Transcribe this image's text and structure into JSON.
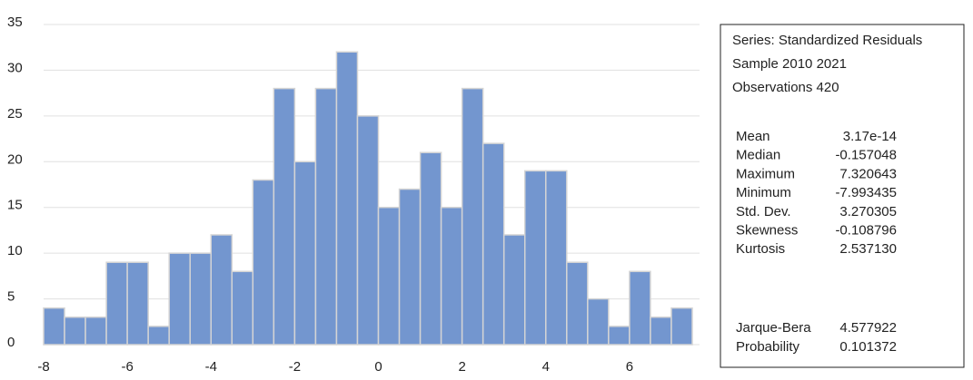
{
  "chart_data": {
    "type": "histogram",
    "bins": [
      -8,
      -7.5,
      -7,
      -6.5,
      -6,
      -5.5,
      -5,
      -4.5,
      -4,
      -3.5,
      -3,
      -2.5,
      -2,
      -1.5,
      -1,
      -0.5,
      0,
      0.5,
      1,
      1.5,
      2,
      2.5,
      3,
      3.5,
      4,
      4.5,
      5,
      5.5,
      6,
      6.5,
      7,
      7.5
    ],
    "values": [
      4,
      3,
      3,
      9,
      9,
      2,
      10,
      10,
      12,
      8,
      18,
      28,
      20,
      28,
      32,
      25,
      15,
      17,
      21,
      15,
      28,
      22,
      12,
      19,
      19,
      9,
      5,
      2,
      8,
      3,
      4
    ],
    "color": "#7396cf",
    "xlim": [
      -8,
      7.5
    ],
    "xticks": [
      -8,
      -6,
      -4,
      -2,
      0,
      2,
      4,
      6
    ],
    "ylim": [
      0,
      35
    ],
    "yticks": [
      0,
      5,
      10,
      15,
      20,
      25,
      30,
      35
    ],
    "grid": true
  },
  "stats": {
    "header": [
      "Series: Standardized Residuals",
      "Sample 2010 2021",
      "Observations  420"
    ],
    "rows": [
      [
        "Mean",
        "3.17e-14"
      ],
      [
        "Median",
        "-0.157048"
      ],
      [
        "Maximum",
        "7.320643"
      ],
      [
        "Minimum",
        "-7.993435"
      ],
      [
        "Std. Dev.",
        "3.270305"
      ],
      [
        "Skewness",
        "-0.108796"
      ],
      [
        "Kurtosis",
        "2.537130"
      ]
    ],
    "test_rows": [
      [
        "Jarque-Bera",
        "4.577922"
      ],
      [
        "Probability",
        "0.101372"
      ]
    ]
  }
}
